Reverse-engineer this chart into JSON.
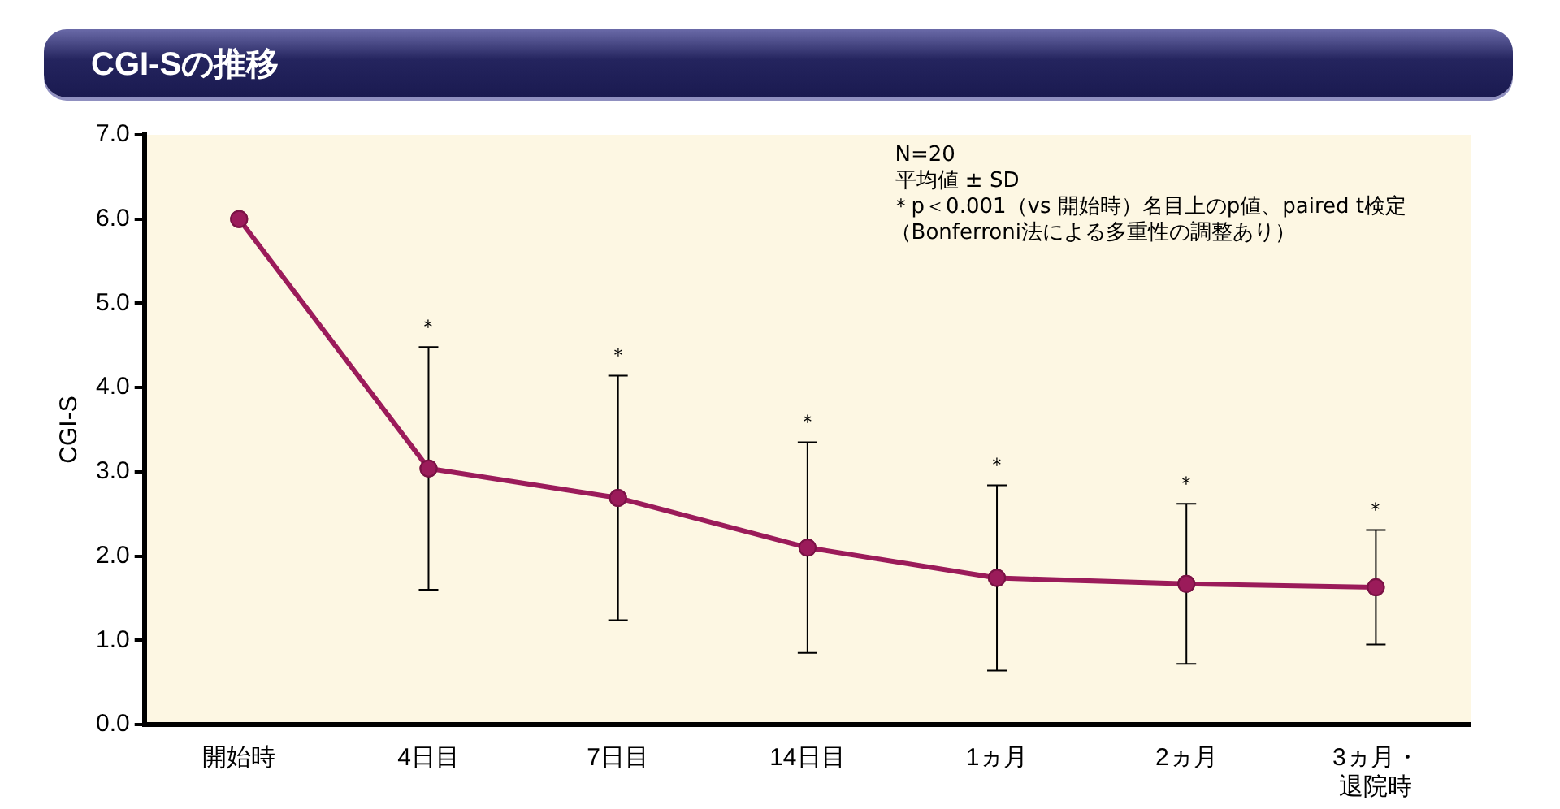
{
  "chart_data": {
    "type": "line",
    "title": "CGI-Sの推移",
    "ylabel": "CGI-S",
    "categories": [
      "開始時",
      "4日目",
      "7日目",
      "14日目",
      "1ヵ月",
      "2ヵ月",
      "3ヵ月・退院時"
    ],
    "series": [
      {
        "color": "#9b1b5a",
        "values": [
          6.0,
          3.04,
          2.69,
          2.1,
          1.74,
          1.67,
          1.63
        ],
        "errors": [
          null,
          1.44,
          1.45,
          1.25,
          1.1,
          0.95,
          0.68
        ]
      }
    ],
    "ylim": [
      0,
      7
    ],
    "yticks": [
      {
        "value": 0,
        "label": "0.0"
      },
      {
        "value": 1,
        "label": "1.0"
      },
      {
        "value": 2,
        "label": "2.0"
      },
      {
        "value": 3,
        "label": "3.0"
      },
      {
        "value": 4,
        "label": "4.0"
      },
      {
        "value": 5,
        "label": "5.0"
      },
      {
        "value": 6,
        "label": "6.0"
      },
      {
        "value": 7,
        "label": "7.0"
      }
    ],
    "grid": false,
    "legend": false,
    "marker": "circle",
    "line_style": "solid",
    "annotations": [
      "N=20",
      "平均値 ± SD",
      "＊p＜0.001（vs 開始時）名目上のp値、paired t検定",
      "（Bonferroni法による多重性の調整あり）",
      {
        "text": "＊",
        "x": "4日目",
        "y": 4.48
      },
      {
        "text": "＊",
        "x": "7日目",
        "y": 4.14
      },
      {
        "text": "＊",
        "x": "14日目",
        "y": 3.35
      },
      {
        "text": "＊",
        "x": "1ヵ月",
        "y": 2.84
      },
      {
        "text": "＊",
        "x": "2ヵ月",
        "y": 2.62
      },
      {
        "text": "＊",
        "x": "3ヵ月・退院時",
        "y": 2.31
      }
    ]
  }
}
